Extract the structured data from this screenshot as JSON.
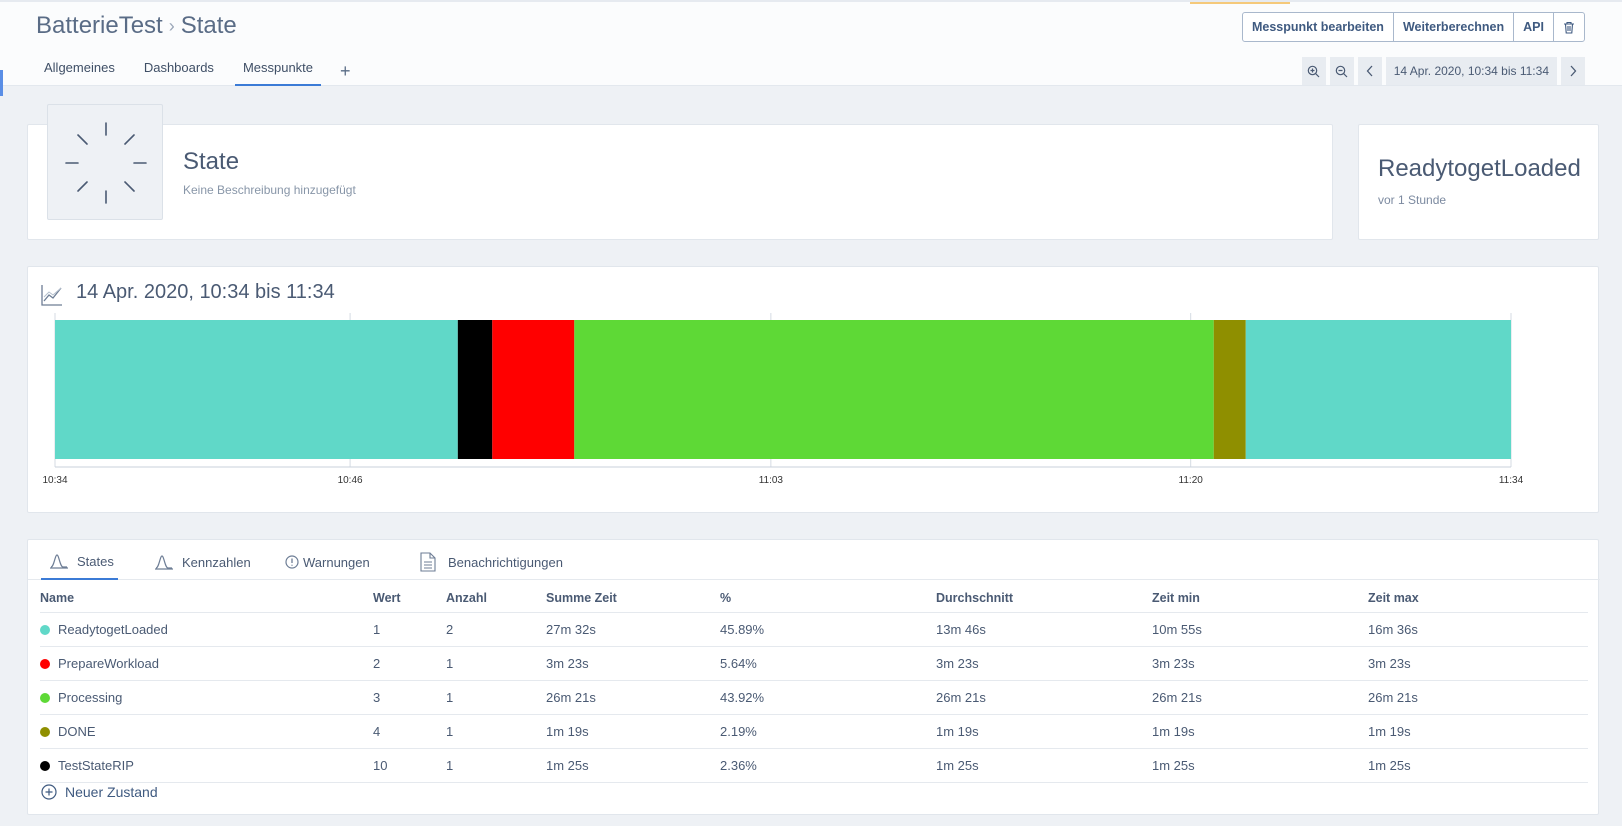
{
  "header": {
    "breadcrumb_root": "BatterieTest",
    "breadcrumb_sep": "›",
    "breadcrumb_current": "State",
    "tabs": [
      {
        "label": "Allgemeines"
      },
      {
        "label": "Dashboards"
      },
      {
        "label": "Messpunkte"
      }
    ],
    "add_tab_label": "+",
    "buttons": {
      "edit": "Messpunkt bearbeiten",
      "recalc": "Weiterberechnen",
      "api": "API"
    },
    "time_range": "14 Apr. 2020, 10:34 bis 11:34"
  },
  "state_card": {
    "title": "State",
    "description": "Keine Beschreibung hinzugefügt"
  },
  "current_card": {
    "value": "ReadytogetLoaded",
    "time": "vor 1 Stunde"
  },
  "chart": {
    "title": "14 Apr. 2020, 10:34 bis 11:34"
  },
  "chart_data": {
    "type": "timeline",
    "x_start": "10:34",
    "x_end": "11:34",
    "x_ticks": [
      "10:34",
      "10:46",
      "11:03",
      "11:20",
      "11:34"
    ],
    "x_tick_minutes": [
      0,
      12.16,
      29.5,
      46.8,
      60
    ],
    "segments": [
      {
        "state": "ReadytogetLoaded",
        "start_min": 0,
        "end_min": 16.6,
        "color": "#60d8c8"
      },
      {
        "state": "TestStateRIP",
        "start_min": 16.6,
        "end_min": 18.02,
        "color": "#000000"
      },
      {
        "state": "PrepareWorkload",
        "start_min": 18.02,
        "end_min": 21.4,
        "color": "#ff0000"
      },
      {
        "state": "Processing",
        "start_min": 21.4,
        "end_min": 47.75,
        "color": "#5ed936"
      },
      {
        "state": "DONE",
        "start_min": 47.75,
        "end_min": 49.07,
        "color": "#8f8f00"
      },
      {
        "state": "ReadytogetLoaded",
        "start_min": 49.07,
        "end_min": 60,
        "color": "#60d8c8"
      }
    ]
  },
  "table": {
    "tabs": [
      {
        "label": "States"
      },
      {
        "label": "Kennzahlen"
      },
      {
        "label": "Warnungen"
      },
      {
        "label": "Benachrichtigungen"
      }
    ],
    "columns": [
      "Name",
      "Wert",
      "Anzahl",
      "Summe Zeit",
      "%",
      "Durchschnitt",
      "Zeit min",
      "Zeit max"
    ],
    "rows": [
      {
        "name": "ReadytogetLoaded",
        "color": "#60d8c8",
        "wert": "1",
        "anzahl": "2",
        "summe": "27m 32s",
        "pct": "45.89%",
        "avg": "13m 46s",
        "min": "10m 55s",
        "max": "16m 36s"
      },
      {
        "name": "PrepareWorkload",
        "color": "#ff0000",
        "wert": "2",
        "anzahl": "1",
        "summe": "3m 23s",
        "pct": "5.64%",
        "avg": "3m 23s",
        "min": "3m 23s",
        "max": "3m 23s"
      },
      {
        "name": "Processing",
        "color": "#5ed936",
        "wert": "3",
        "anzahl": "1",
        "summe": "26m 21s",
        "pct": "43.92%",
        "avg": "26m 21s",
        "min": "26m 21s",
        "max": "26m 21s"
      },
      {
        "name": "DONE",
        "color": "#8f8f00",
        "wert": "4",
        "anzahl": "1",
        "summe": "1m 19s",
        "pct": "2.19%",
        "avg": "1m 19s",
        "min": "1m 19s",
        "max": "1m 19s"
      },
      {
        "name": "TestStateRIP",
        "color": "#000000",
        "wert": "10",
        "anzahl": "1",
        "summe": "1m 25s",
        "pct": "2.36%",
        "avg": "1m 25s",
        "min": "1m 25s",
        "max": "1m 25s"
      }
    ],
    "new_state_label": "Neuer Zustand"
  }
}
